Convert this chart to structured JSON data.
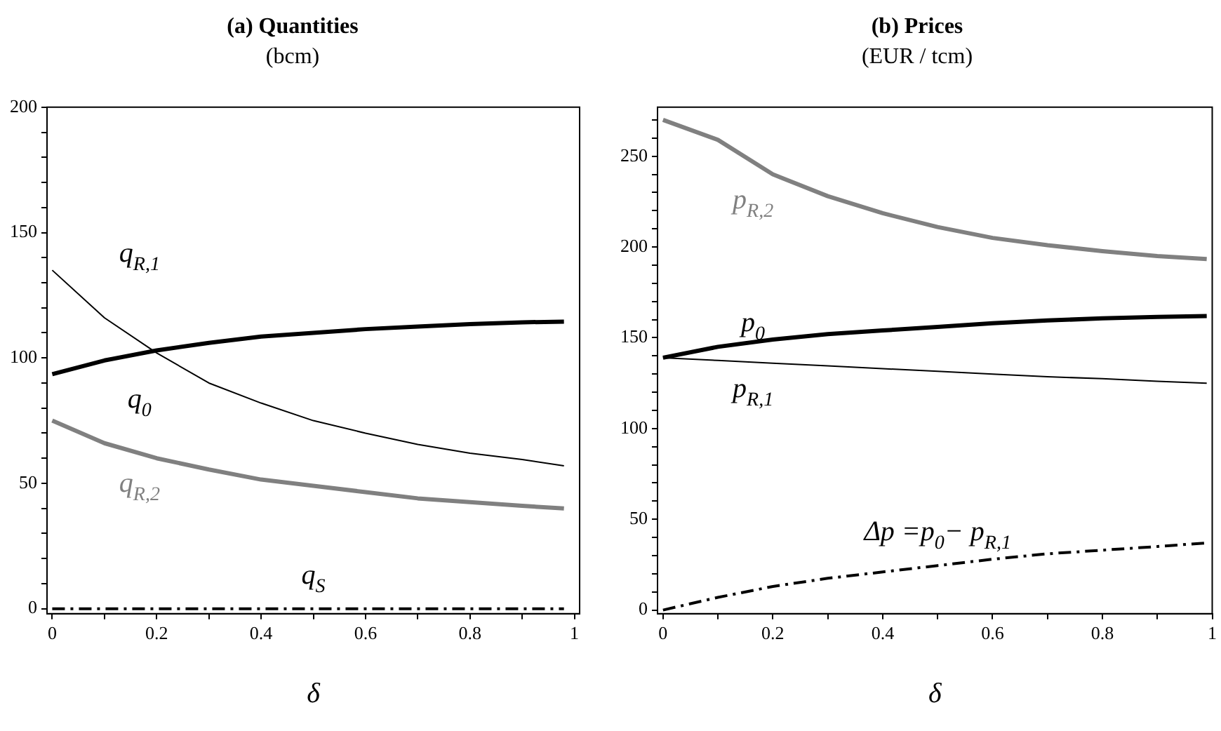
{
  "chart_data": [
    {
      "type": "line",
      "title": "(a) Quantities",
      "subtitle": "(bcm)",
      "xlabel": "δ",
      "x": [
        0,
        0.1,
        0.2,
        0.3,
        0.4,
        0.5,
        0.6,
        0.7,
        0.8,
        0.9,
        0.98
      ],
      "xlim": [
        -0.01,
        1.01
      ],
      "xticks": [
        0,
        {
          "value": 0.1,
          "label": null
        },
        0.2,
        {
          "value": 0.3,
          "label": null
        },
        0.4,
        {
          "value": 0.5,
          "label": null
        },
        0.6,
        {
          "value": 0.7,
          "label": null
        },
        0.8,
        {
          "value": 0.9,
          "label": null
        },
        1
      ],
      "ylim": [
        -2,
        200
      ],
      "yticks": [
        0,
        {
          "value": 10,
          "label": null
        },
        {
          "value": 20,
          "label": null
        },
        {
          "value": 30,
          "label": null
        },
        {
          "value": 40,
          "label": null
        },
        50,
        {
          "value": 60,
          "label": null
        },
        {
          "value": 70,
          "label": null
        },
        {
          "value": 80,
          "label": null
        },
        {
          "value": 90,
          "label": null
        },
        100,
        {
          "value": 110,
          "label": null
        },
        {
          "value": 120,
          "label": null
        },
        {
          "value": 130,
          "label": null
        },
        {
          "value": 140,
          "label": null
        },
        150,
        {
          "value": 160,
          "label": null
        },
        {
          "value": 170,
          "label": null
        },
        {
          "value": 180,
          "label": null
        },
        {
          "value": 190,
          "label": null
        },
        200
      ],
      "grid": false,
      "legend": false,
      "marker": "none",
      "series": [
        {
          "name": "q$_{R,1}$",
          "color": "#000000",
          "values": [
            135,
            116,
            102,
            90,
            82,
            75,
            70,
            65.5,
            62,
            59.5,
            57
          ]
        },
        {
          "name": "q$_{0}$",
          "color": "#000000",
          "values": [
            93.5,
            99,
            103,
            106,
            108.5,
            110,
            111.5,
            112.5,
            113.5,
            114.2,
            114.5
          ]
        },
        {
          "name": "q$_{R,2}$",
          "color": "#808080",
          "values": [
            75,
            66,
            60,
            55.5,
            51.5,
            49,
            46.5,
            44,
            42.5,
            41,
            40
          ]
        },
        {
          "name": "q$_{S}$",
          "color": "#000000",
          "line_style": "dashed",
          "values": [
            0,
            0,
            0,
            0,
            0,
            0,
            0,
            0,
            0,
            0,
            0
          ]
        }
      ]
    },
    {
      "type": "line",
      "title": "(b) Prices",
      "subtitle": "(EUR / tcm)",
      "xlabel": "δ",
      "x": [
        0,
        0.1,
        0.2,
        0.3,
        0.4,
        0.5,
        0.6,
        0.7,
        0.8,
        0.9,
        0.99
      ],
      "xlim": [
        -0.01,
        1
      ],
      "xticks": [
        0,
        {
          "value": 0.1,
          "label": null
        },
        0.2,
        {
          "value": 0.3,
          "label": null
        },
        0.4,
        {
          "value": 0.5,
          "label": null
        },
        0.6,
        {
          "value": 0.7,
          "label": null
        },
        0.8,
        {
          "value": 0.9,
          "label": null
        },
        1
      ],
      "ylim": [
        -2,
        277
      ],
      "yticks": [
        0,
        {
          "value": 10,
          "label": null
        },
        {
          "value": 20,
          "label": null
        },
        {
          "value": 30,
          "label": null
        },
        {
          "value": 40,
          "label": null
        },
        50,
        {
          "value": 60,
          "label": null
        },
        {
          "value": 70,
          "label": null
        },
        {
          "value": 80,
          "label": null
        },
        {
          "value": 90,
          "label": null
        },
        100,
        {
          "value": 110,
          "label": null
        },
        {
          "value": 120,
          "label": null
        },
        {
          "value": 130,
          "label": null
        },
        {
          "value": 140,
          "label": null
        },
        150,
        {
          "value": 160,
          "label": null
        },
        {
          "value": 170,
          "label": null
        },
        {
          "value": 180,
          "label": null
        },
        {
          "value": 190,
          "label": null
        },
        200,
        {
          "value": 210,
          "label": null
        },
        {
          "value": 220,
          "label": null
        },
        {
          "value": 230,
          "label": null
        },
        {
          "value": 240,
          "label": null
        },
        250,
        {
          "value": 260,
          "label": null
        },
        {
          "value": 270,
          "label": null
        }
      ],
      "grid": false,
      "legend": false,
      "marker": "none",
      "series": [
        {
          "name": "p$_{R,2}$",
          "color": "#808080",
          "values": [
            270,
            259,
            240,
            228,
            218.6,
            211,
            205,
            201,
            197.7,
            195,
            193.4
          ]
        },
        {
          "name": "p$_{0}$",
          "color": "#000000",
          "values": [
            139,
            145,
            149,
            152,
            154,
            156,
            158,
            159.5,
            160.7,
            161.5,
            162
          ]
        },
        {
          "name": "p$_{R,1}$",
          "color": "#000000",
          "values": [
            139,
            137.5,
            136,
            134.5,
            133,
            131.5,
            130,
            128.5,
            127.5,
            126,
            125
          ]
        },
        {
          "name": "Δp =p$_{0}$− p$_{R,1}$",
          "color": "#000000",
          "line_style": "dashed",
          "values": [
            0,
            7,
            13,
            17.5,
            21,
            24.5,
            28,
            31,
            33,
            35,
            37
          ]
        }
      ]
    }
  ]
}
